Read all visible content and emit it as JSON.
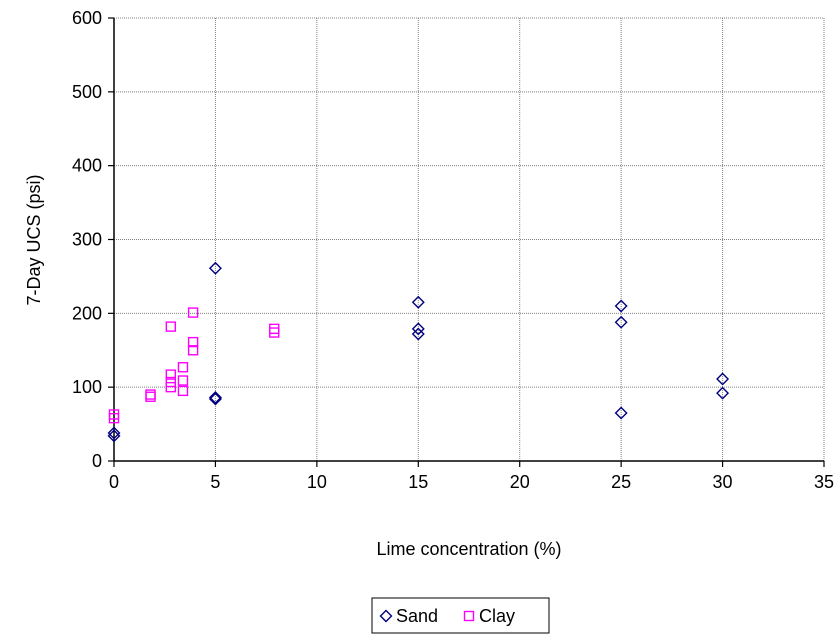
{
  "chart_data": {
    "type": "scatter",
    "xlabel": "Lime concentration (%)",
    "ylabel": "7-Day UCS (psi)",
    "xlim": [
      0,
      35
    ],
    "ylim": [
      0,
      600
    ],
    "x_ticks": [
      "0",
      "5",
      "10",
      "15",
      "20",
      "25",
      "30",
      "35"
    ],
    "y_ticks": [
      "0",
      "100",
      "200",
      "300",
      "400",
      "500",
      "600"
    ],
    "grid": true,
    "legend_position": "bottom-center",
    "series": [
      {
        "name": "Sand",
        "marker": "diamond",
        "color": "#000080",
        "points": [
          [
            0,
            38
          ],
          [
            0,
            34
          ],
          [
            5,
            261
          ],
          [
            5,
            86
          ],
          [
            5,
            84
          ],
          [
            15,
            215
          ],
          [
            15,
            179
          ],
          [
            15,
            172
          ],
          [
            25,
            210
          ],
          [
            25,
            188
          ],
          [
            25,
            65
          ],
          [
            30,
            111
          ],
          [
            30,
            92
          ]
        ]
      },
      {
        "name": "Clay",
        "marker": "square",
        "color": "#ff00ff",
        "points": [
          [
            0,
            63
          ],
          [
            0,
            58
          ],
          [
            1.8,
            90
          ],
          [
            1.8,
            87
          ],
          [
            2.8,
            182
          ],
          [
            2.8,
            117
          ],
          [
            2.8,
            107
          ],
          [
            2.8,
            100
          ],
          [
            3.4,
            127
          ],
          [
            3.4,
            109
          ],
          [
            3.4,
            95
          ],
          [
            3.9,
            201
          ],
          [
            3.9,
            161
          ],
          [
            3.9,
            150
          ],
          [
            7.9,
            179
          ],
          [
            7.9,
            174
          ]
        ]
      }
    ]
  }
}
